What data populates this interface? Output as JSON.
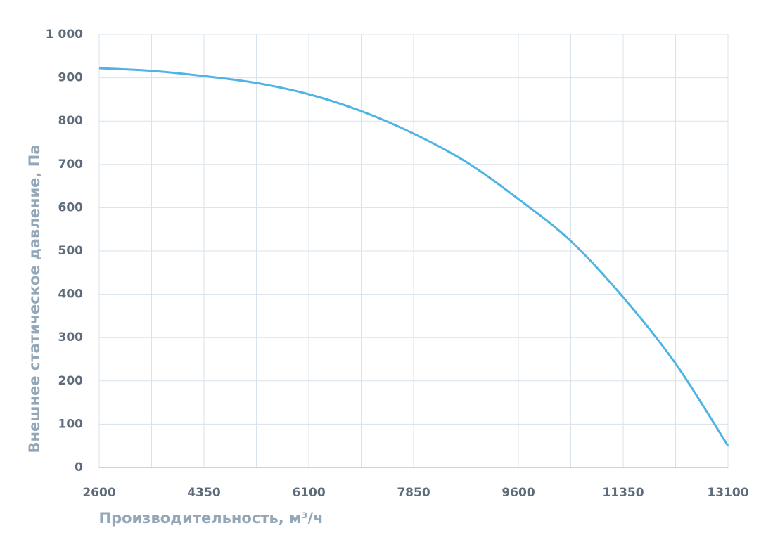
{
  "chart_data": {
    "type": "line",
    "x_label": "Производительность, м³/ч",
    "y_label": "Внешнее статическое давление, Па",
    "series": [
      {
        "color": "#4fb3e3",
        "x": [
          2600,
          3475,
          4350,
          5225,
          6100,
          6975,
          7850,
          8725,
          9600,
          10475,
          11350,
          12225,
          13100
        ],
        "values": [
          922,
          916,
          904,
          888,
          862,
          823,
          771,
          706,
          620,
          523,
          393,
          240,
          50
        ]
      }
    ],
    "xlim": [
      2600,
      13100
    ],
    "xticks": [
      2600,
      4350,
      6100,
      7850,
      9600,
      11350,
      13100
    ],
    "x_minor_gridlines": [
      3475,
      5225,
      6975,
      8725,
      10475,
      12225
    ],
    "ylim": [
      0,
      1000
    ],
    "yticks": [
      0,
      100,
      200,
      300,
      400,
      500,
      600,
      700,
      800,
      900,
      {
        "value": 1000,
        "label": "1 000"
      }
    ],
    "grid": true
  }
}
